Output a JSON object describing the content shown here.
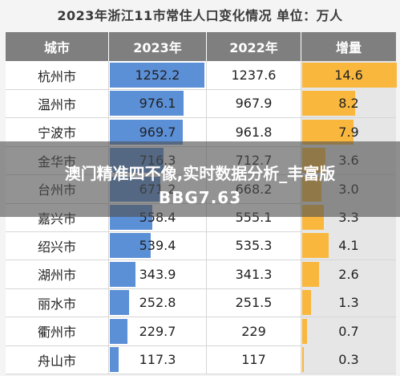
{
  "title": "2023年浙江11市常住人口变化情况    单位：万人",
  "headers": [
    "城市",
    "2023年",
    "2022年",
    "增量"
  ],
  "overlay": {
    "line1": "澳门精准四不像,实时数据分析_丰富版",
    "line2": "BBG7.63"
  },
  "chart_data": {
    "type": "table",
    "columns": [
      "城市",
      "2023年",
      "2022年",
      "增量"
    ],
    "rows": [
      {
        "city": "杭州市",
        "y2023": "1252.2",
        "y2022": "1237.6",
        "inc": "14.6"
      },
      {
        "city": "温州市",
        "y2023": "976.1",
        "y2022": "967.9",
        "inc": "8.2"
      },
      {
        "city": "宁波市",
        "y2023": "969.7",
        "y2022": "961.8",
        "inc": "7.9"
      },
      {
        "city": "金华市",
        "y2023": "716.3",
        "y2022": "712.7",
        "inc": "3.6"
      },
      {
        "city": "台州市",
        "y2023": "671.2",
        "y2022": "668.2",
        "inc": "3.0"
      },
      {
        "city": "嘉兴市",
        "y2023": "558.4",
        "y2022": "555.1",
        "inc": "3.3"
      },
      {
        "city": "绍兴市",
        "y2023": "539.4",
        "y2022": "535.3",
        "inc": "4.1"
      },
      {
        "city": "湖州市",
        "y2023": "343.9",
        "y2022": "341.3",
        "inc": "2.6"
      },
      {
        "city": "丽水市",
        "y2023": "252.8",
        "y2022": "251.5",
        "inc": "1.3"
      },
      {
        "city": "衢州市",
        "y2023": "229.7",
        "y2022": "229",
        "inc": "0.7"
      },
      {
        "city": "舟山市",
        "y2023": "117.3",
        "y2022": "117",
        "inc": "0.3"
      }
    ],
    "bar_max_2023": 1252.2,
    "bar_max_inc": 14.6,
    "colors": {
      "bar2023": "#5b8fd6",
      "barInc": "#f9b73d",
      "header": "#7f7f7f"
    }
  }
}
